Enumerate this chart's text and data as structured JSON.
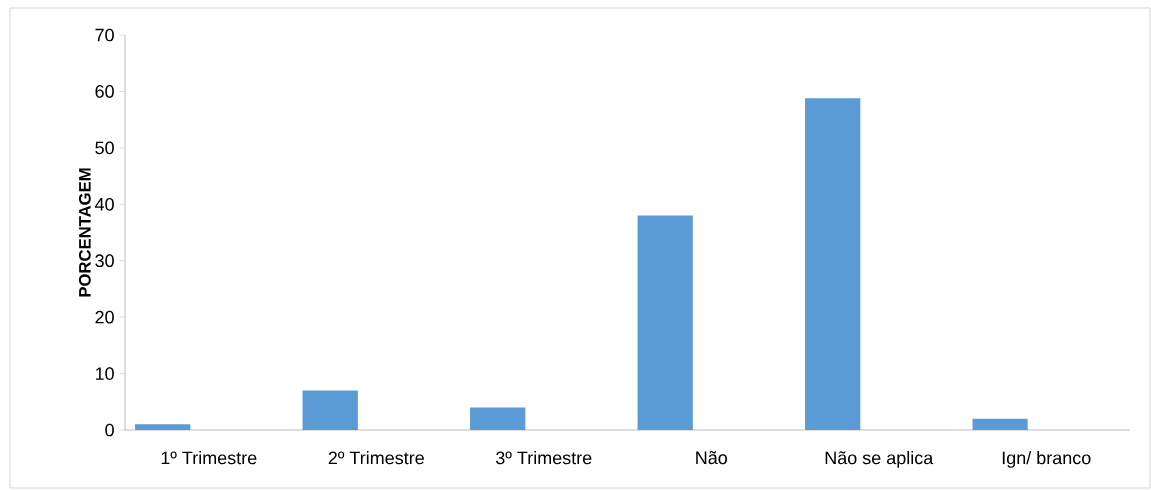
{
  "chart_data": {
    "type": "bar",
    "ylabel": "PORCENTAGEM",
    "categories": [
      "1º Trimestre",
      "2º Trimestre",
      "3º Trimestre",
      "Não",
      "Não se aplica",
      "Ign/ branco"
    ],
    "values": [
      1,
      7,
      4,
      38,
      58.8,
      2
    ],
    "color": "#5b9bd5",
    "ylim": [
      0,
      70
    ],
    "yticks": [
      0,
      10,
      20,
      30,
      40,
      50,
      60,
      70
    ],
    "grid": false,
    "legend": false
  }
}
